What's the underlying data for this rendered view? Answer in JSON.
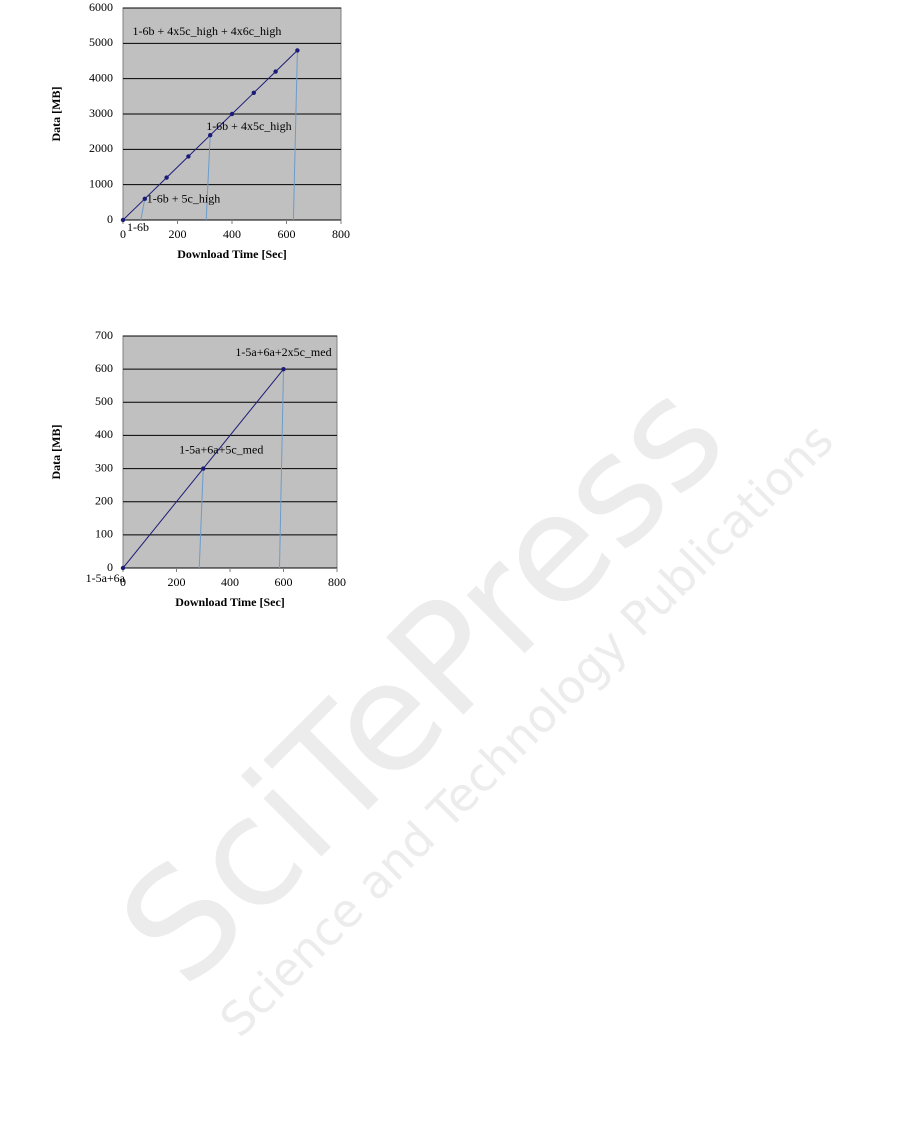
{
  "watermark": {
    "title": "SciTePress",
    "subtitle": "Science and Technology Publications"
  },
  "chart_data": [
    {
      "type": "line",
      "x_label": "Download Time [Sec]",
      "y_label": "Data [MB]",
      "x": [
        0,
        80,
        160,
        240,
        320,
        400,
        480,
        560,
        640
      ],
      "values": [
        0,
        600,
        1200,
        1800,
        2400,
        3000,
        3600,
        4200,
        4800
      ],
      "point_labels": [
        "1-6b",
        "1-6b + 5c_high",
        null,
        null,
        "1-6b + 4x5c_high",
        null,
        null,
        null,
        "1-6b + 4x5c_high + 4x6c_high"
      ],
      "color": "#1c1c78",
      "drop_color": "#6a9ccc",
      "background": "#c0c0c0",
      "xlim": [
        0,
        800
      ],
      "xticks": [
        0,
        200,
        400,
        600,
        800
      ],
      "ylim": [
        0,
        6000
      ],
      "yticks": [
        0,
        1000,
        2000,
        3000,
        4000,
        5000,
        6000
      ],
      "grid": true
    },
    {
      "type": "line",
      "x_label": "Download Time [Sec]",
      "y_label": "Data [MB]",
      "x": [
        0,
        300,
        600
      ],
      "values": [
        0,
        300,
        600
      ],
      "point_labels": [
        "1-5a+6a",
        "1-5a+6a+5c_med",
        "1-5a+6a+2x5c_med"
      ],
      "color": "#1c1c78",
      "drop_color": "#6a9ccc",
      "background": "#c0c0c0",
      "xlim": [
        0,
        800
      ],
      "xticks": [
        0,
        200,
        400,
        600,
        800
      ],
      "ylim": [
        0,
        700
      ],
      "yticks": [
        0,
        100,
        200,
        300,
        400,
        500,
        600,
        700
      ],
      "grid": true
    }
  ]
}
